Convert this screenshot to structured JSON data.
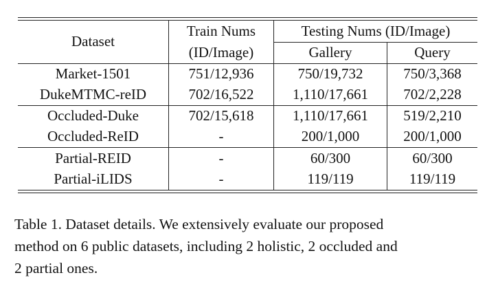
{
  "table": {
    "header": {
      "dataset": "Dataset",
      "train_line1": "Train Nums",
      "train_line2": "(ID/Image)",
      "testing": "Testing Nums (ID/Image)",
      "gallery": "Gallery",
      "query": "Query"
    },
    "rows": [
      {
        "dataset": "Market-1501",
        "train": "751/12,936",
        "gallery": "750/19,732",
        "query": "750/3,368"
      },
      {
        "dataset": "DukeMTMC-reID",
        "train": "702/16,522",
        "gallery": "1,110/17,661",
        "query": "702/2,228"
      },
      {
        "dataset": "Occluded-Duke",
        "train": "702/15,618",
        "gallery": "1,110/17,661",
        "query": "519/2,210"
      },
      {
        "dataset": "Occluded-ReID",
        "train": "-",
        "gallery": "200/1,000",
        "query": "200/1,000"
      },
      {
        "dataset": "Partial-REID",
        "train": "-",
        "gallery": "60/300",
        "query": "60/300"
      },
      {
        "dataset": "Partial-iLIDS",
        "train": "-",
        "gallery": "119/119",
        "query": "119/119"
      }
    ]
  },
  "caption": {
    "line1": "Table 1. Dataset details.  We extensively evaluate our proposed",
    "line2": "method on 6 public datasets, including 2 holistic, 2 occluded and",
    "line3": "2 partial ones."
  }
}
